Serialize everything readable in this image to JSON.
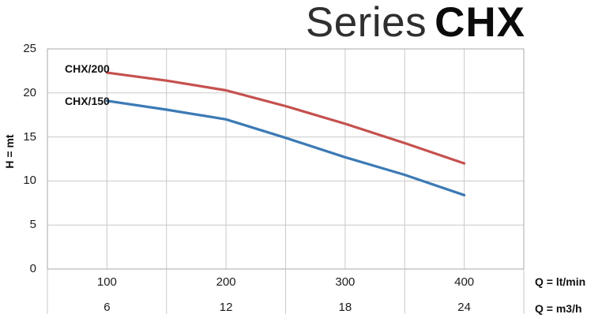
{
  "title": {
    "prefix": "Series",
    "model": "CHX"
  },
  "axis_labels": {
    "y_title": "H = mt",
    "x_unit_row1": "Q = lt/min",
    "x_unit_row2": "Q = m3/h"
  },
  "chart_data": {
    "type": "line",
    "title": "Series CHX",
    "ylabel": "H = mt",
    "xlabel_row1": "Q = lt/min",
    "xlabel_row2": "Q = m3/h",
    "x": [
      100,
      150,
      200,
      250,
      300,
      350,
      400
    ],
    "series": [
      {
        "name": "CHX/200",
        "color": "#c5514e",
        "values": [
          22.3,
          21.4,
          20.3,
          18.5,
          16.5,
          14.3,
          12.0
        ]
      },
      {
        "name": "CHX/150",
        "color": "#3c7ab5",
        "values": [
          19.1,
          18.1,
          17.0,
          14.9,
          12.7,
          10.7,
          8.4
        ]
      }
    ],
    "y_ticks": [
      25,
      20,
      15,
      10,
      5,
      0
    ],
    "x_ticks_row1": [
      100,
      200,
      300,
      400
    ],
    "x_ticks_row2": [
      6,
      12,
      18,
      24
    ],
    "ylim": [
      0,
      25
    ],
    "grid": true,
    "legend_position": "inline-curve-labels"
  },
  "colors": {
    "grid": "#c9c9c9",
    "plot_border": "#a9a9a9",
    "text": "#1c1c1c"
  }
}
